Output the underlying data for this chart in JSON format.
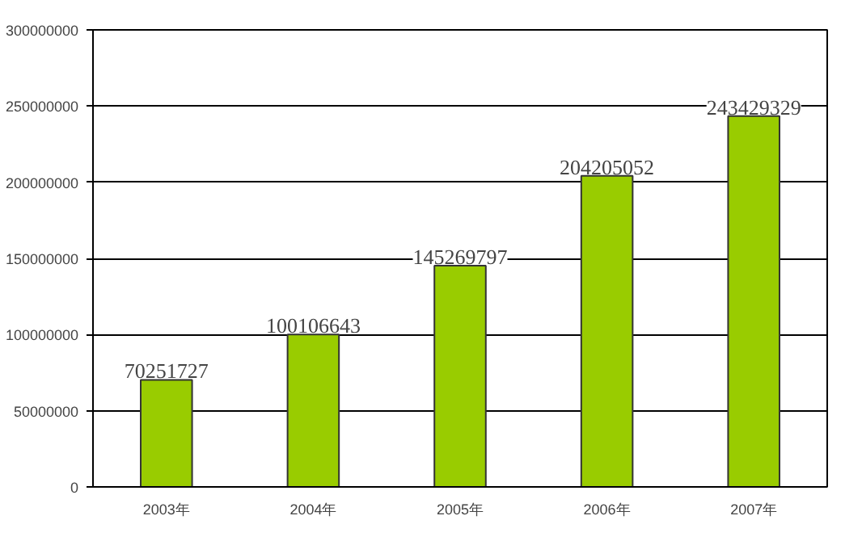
{
  "chart_data": {
    "type": "bar",
    "categories": [
      "2003年",
      "2004年",
      "2005年",
      "2006年",
      "2007年"
    ],
    "values": [
      70251727,
      100106643,
      145269797,
      204205052,
      243429329
    ],
    "color": "#99cc00",
    "ylim": [
      0,
      300000000
    ],
    "yticks": [
      0,
      50000000,
      100000000,
      150000000,
      200000000,
      250000000,
      300000000
    ],
    "grid": "y",
    "data_labels": true
  }
}
